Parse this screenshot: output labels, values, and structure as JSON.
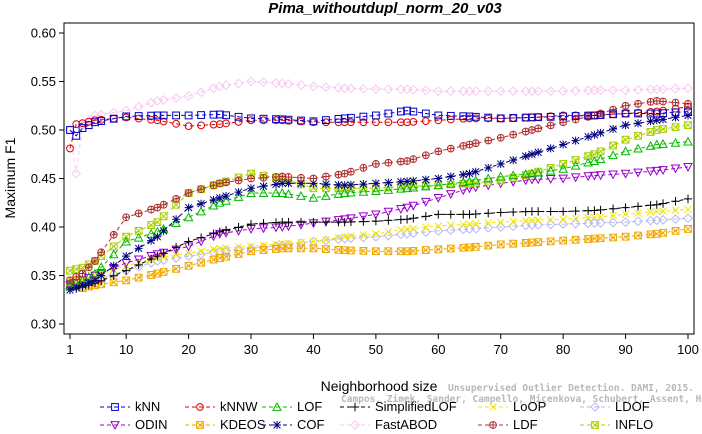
{
  "chart_data": {
    "type": "line",
    "title": "Pima_withoutdupl_norm_20_v03",
    "xlabel": "Neighborhood size",
    "ylabel": "Maximum F1",
    "xlim": [
      1,
      100
    ],
    "ylim": [
      0.3,
      0.6
    ],
    "xticks": [
      1,
      10,
      20,
      30,
      40,
      50,
      60,
      70,
      80,
      90,
      100
    ],
    "yticks": [
      0.3,
      0.35,
      0.4,
      0.45,
      0.5,
      0.55,
      0.6
    ],
    "grid": false,
    "legend_position": "bottom",
    "series": [
      {
        "name": "kNN",
        "color": "#0000cc",
        "marker": "square",
        "points": [
          [
            1,
            0.5
          ],
          [
            2,
            0.494
          ],
          [
            3,
            0.502
          ],
          [
            5,
            0.508
          ],
          [
            10,
            0.514
          ],
          [
            15,
            0.515
          ],
          [
            20,
            0.515
          ],
          [
            25,
            0.516
          ],
          [
            30,
            0.512
          ],
          [
            35,
            0.511
          ],
          [
            40,
            0.509
          ],
          [
            45,
            0.512
          ],
          [
            50,
            0.515
          ],
          [
            55,
            0.52
          ],
          [
            60,
            0.515
          ],
          [
            65,
            0.514
          ],
          [
            70,
            0.512
          ],
          [
            75,
            0.513
          ],
          [
            80,
            0.514
          ],
          [
            85,
            0.515
          ],
          [
            90,
            0.517
          ],
          [
            95,
            0.517
          ],
          [
            100,
            0.519
          ]
        ]
      },
      {
        "name": "kNNW",
        "color": "#dd0000",
        "marker": "circle",
        "points": [
          [
            1,
            0.481
          ],
          [
            2,
            0.506
          ],
          [
            3,
            0.507
          ],
          [
            5,
            0.51
          ],
          [
            10,
            0.513
          ],
          [
            15,
            0.51
          ],
          [
            20,
            0.504
          ],
          [
            25,
            0.506
          ],
          [
            30,
            0.51
          ],
          [
            35,
            0.51
          ],
          [
            40,
            0.508
          ],
          [
            45,
            0.508
          ],
          [
            50,
            0.508
          ],
          [
            55,
            0.508
          ],
          [
            60,
            0.51
          ],
          [
            65,
            0.512
          ],
          [
            70,
            0.512
          ],
          [
            75,
            0.513
          ],
          [
            80,
            0.515
          ],
          [
            85,
            0.515
          ],
          [
            90,
            0.517
          ],
          [
            95,
            0.519
          ],
          [
            100,
            0.524
          ]
        ]
      },
      {
        "name": "LOF",
        "color": "#00bb00",
        "marker": "triangle-up",
        "points": [
          [
            1,
            0.34
          ],
          [
            3,
            0.345
          ],
          [
            5,
            0.352
          ],
          [
            10,
            0.385
          ],
          [
            15,
            0.395
          ],
          [
            20,
            0.41
          ],
          [
            25,
            0.425
          ],
          [
            30,
            0.435
          ],
          [
            35,
            0.435
          ],
          [
            40,
            0.43
          ],
          [
            45,
            0.435
          ],
          [
            50,
            0.437
          ],
          [
            55,
            0.44
          ],
          [
            60,
            0.443
          ],
          [
            65,
            0.447
          ],
          [
            70,
            0.452
          ],
          [
            75,
            0.455
          ],
          [
            80,
            0.46
          ],
          [
            85,
            0.468
          ],
          [
            90,
            0.478
          ],
          [
            95,
            0.485
          ],
          [
            100,
            0.488
          ]
        ]
      },
      {
        "name": "SimplifiedLOF",
        "color": "#000000",
        "marker": "plus",
        "points": [
          [
            1,
            0.335
          ],
          [
            3,
            0.338
          ],
          [
            5,
            0.342
          ],
          [
            10,
            0.355
          ],
          [
            15,
            0.37
          ],
          [
            20,
            0.385
          ],
          [
            25,
            0.395
          ],
          [
            30,
            0.403
          ],
          [
            35,
            0.405
          ],
          [
            40,
            0.405
          ],
          [
            45,
            0.405
          ],
          [
            50,
            0.406
          ],
          [
            55,
            0.408
          ],
          [
            60,
            0.413
          ],
          [
            65,
            0.413
          ],
          [
            70,
            0.415
          ],
          [
            75,
            0.416
          ],
          [
            80,
            0.416
          ],
          [
            85,
            0.417
          ],
          [
            90,
            0.42
          ],
          [
            95,
            0.423
          ],
          [
            100,
            0.429
          ]
        ]
      },
      {
        "name": "LoOP",
        "color": "#f5e600",
        "marker": "x",
        "points": [
          [
            1,
            0.345
          ],
          [
            3,
            0.345
          ],
          [
            5,
            0.35
          ],
          [
            10,
            0.36
          ],
          [
            15,
            0.368
          ],
          [
            20,
            0.373
          ],
          [
            25,
            0.378
          ],
          [
            30,
            0.38
          ],
          [
            35,
            0.383
          ],
          [
            40,
            0.385
          ],
          [
            45,
            0.39
          ],
          [
            50,
            0.393
          ],
          [
            55,
            0.398
          ],
          [
            60,
            0.401
          ],
          [
            65,
            0.403
          ],
          [
            70,
            0.405
          ],
          [
            75,
            0.407
          ],
          [
            80,
            0.408
          ],
          [
            85,
            0.41
          ],
          [
            90,
            0.413
          ],
          [
            95,
            0.416
          ],
          [
            100,
            0.418
          ]
        ]
      },
      {
        "name": "LDOF",
        "color": "#b8b8f0",
        "marker": "diamond",
        "points": [
          [
            1,
            0.34
          ],
          [
            3,
            0.342
          ],
          [
            5,
            0.345
          ],
          [
            10,
            0.355
          ],
          [
            15,
            0.365
          ],
          [
            20,
            0.37
          ],
          [
            25,
            0.375
          ],
          [
            30,
            0.378
          ],
          [
            35,
            0.381
          ],
          [
            40,
            0.385
          ],
          [
            45,
            0.388
          ],
          [
            50,
            0.39
          ],
          [
            55,
            0.393
          ],
          [
            60,
            0.396
          ],
          [
            65,
            0.398
          ],
          [
            70,
            0.4
          ],
          [
            75,
            0.402
          ],
          [
            80,
            0.403
          ],
          [
            85,
            0.404
          ],
          [
            90,
            0.405
          ],
          [
            95,
            0.407
          ],
          [
            100,
            0.409
          ]
        ]
      },
      {
        "name": "ODIN",
        "color": "#9900cc",
        "marker": "triangle-down",
        "points": [
          [
            1,
            0.34
          ],
          [
            3,
            0.345
          ],
          [
            5,
            0.35
          ],
          [
            10,
            0.363
          ],
          [
            15,
            0.372
          ],
          [
            20,
            0.38
          ],
          [
            25,
            0.393
          ],
          [
            30,
            0.398
          ],
          [
            35,
            0.4
          ],
          [
            40,
            0.404
          ],
          [
            45,
            0.408
          ],
          [
            50,
            0.413
          ],
          [
            55,
            0.42
          ],
          [
            60,
            0.43
          ],
          [
            65,
            0.44
          ],
          [
            70,
            0.445
          ],
          [
            75,
            0.449
          ],
          [
            80,
            0.45
          ],
          [
            85,
            0.453
          ],
          [
            90,
            0.455
          ],
          [
            95,
            0.458
          ],
          [
            100,
            0.462
          ]
        ]
      },
      {
        "name": "KDEOS",
        "color": "#f0a800",
        "marker": "square-x",
        "points": [
          [
            1,
            0.34
          ],
          [
            3,
            0.337
          ],
          [
            5,
            0.34
          ],
          [
            10,
            0.345
          ],
          [
            15,
            0.352
          ],
          [
            20,
            0.36
          ],
          [
            25,
            0.368
          ],
          [
            30,
            0.375
          ],
          [
            35,
            0.378
          ],
          [
            40,
            0.378
          ],
          [
            45,
            0.376
          ],
          [
            50,
            0.375
          ],
          [
            55,
            0.375
          ],
          [
            60,
            0.377
          ],
          [
            65,
            0.379
          ],
          [
            70,
            0.382
          ],
          [
            75,
            0.384
          ],
          [
            80,
            0.386
          ],
          [
            85,
            0.388
          ],
          [
            90,
            0.39
          ],
          [
            95,
            0.393
          ],
          [
            100,
            0.398
          ]
        ]
      },
      {
        "name": "COF",
        "color": "#000080",
        "marker": "asterisk",
        "points": [
          [
            1,
            0.335
          ],
          [
            3,
            0.34
          ],
          [
            5,
            0.345
          ],
          [
            10,
            0.37
          ],
          [
            15,
            0.39
          ],
          [
            20,
            0.42
          ],
          [
            25,
            0.43
          ],
          [
            30,
            0.44
          ],
          [
            35,
            0.445
          ],
          [
            40,
            0.445
          ],
          [
            45,
            0.443
          ],
          [
            50,
            0.445
          ],
          [
            55,
            0.447
          ],
          [
            60,
            0.45
          ],
          [
            65,
            0.455
          ],
          [
            70,
            0.465
          ],
          [
            75,
            0.475
          ],
          [
            80,
            0.485
          ],
          [
            85,
            0.495
          ],
          [
            90,
            0.505
          ],
          [
            95,
            0.51
          ],
          [
            100,
            0.515
          ]
        ]
      },
      {
        "name": "FastABOD",
        "color": "#f8c8f0",
        "marker": "diamond",
        "points": [
          [
            1,
            0.5
          ],
          [
            2,
            0.455
          ],
          [
            3,
            0.505
          ],
          [
            5,
            0.515
          ],
          [
            10,
            0.52
          ],
          [
            15,
            0.53
          ],
          [
            20,
            0.535
          ],
          [
            25,
            0.545
          ],
          [
            30,
            0.55
          ],
          [
            35,
            0.548
          ],
          [
            40,
            0.545
          ],
          [
            45,
            0.543
          ],
          [
            50,
            0.542
          ],
          [
            55,
            0.542
          ],
          [
            60,
            0.54
          ],
          [
            65,
            0.54
          ],
          [
            70,
            0.54
          ],
          [
            75,
            0.54
          ],
          [
            80,
            0.54
          ],
          [
            85,
            0.541
          ],
          [
            90,
            0.541
          ],
          [
            95,
            0.542
          ],
          [
            100,
            0.543
          ]
        ]
      },
      {
        "name": "LDF",
        "color": "#b03030",
        "marker": "circle-plus",
        "points": [
          [
            1,
            0.345
          ],
          [
            3,
            0.352
          ],
          [
            5,
            0.365
          ],
          [
            10,
            0.41
          ],
          [
            15,
            0.42
          ],
          [
            20,
            0.435
          ],
          [
            25,
            0.445
          ],
          [
            30,
            0.45
          ],
          [
            35,
            0.452
          ],
          [
            40,
            0.45
          ],
          [
            45,
            0.455
          ],
          [
            50,
            0.465
          ],
          [
            55,
            0.468
          ],
          [
            60,
            0.478
          ],
          [
            65,
            0.485
          ],
          [
            70,
            0.492
          ],
          [
            75,
            0.5
          ],
          [
            80,
            0.508
          ],
          [
            85,
            0.515
          ],
          [
            90,
            0.525
          ],
          [
            95,
            0.53
          ],
          [
            100,
            0.527
          ]
        ]
      },
      {
        "name": "INFLO",
        "color": "#a8d000",
        "marker": "hourglass",
        "points": [
          [
            1,
            0.355
          ],
          [
            3,
            0.358
          ],
          [
            5,
            0.365
          ],
          [
            10,
            0.39
          ],
          [
            15,
            0.405
          ],
          [
            20,
            0.435
          ],
          [
            25,
            0.445
          ],
          [
            30,
            0.455
          ],
          [
            35,
            0.45
          ],
          [
            40,
            0.44
          ],
          [
            45,
            0.44
          ],
          [
            50,
            0.44
          ],
          [
            55,
            0.442
          ],
          [
            60,
            0.443
          ],
          [
            65,
            0.445
          ],
          [
            70,
            0.448
          ],
          [
            75,
            0.455
          ],
          [
            80,
            0.465
          ],
          [
            85,
            0.475
          ],
          [
            90,
            0.49
          ],
          [
            95,
            0.5
          ],
          [
            100,
            0.505
          ]
        ]
      }
    ]
  },
  "watermark": {
    "line1": "Unsupervised Outlier Detection. DAMI, 2015.",
    "line2": "Campos, Zimek, Sander, Campello, Micenkova, Schubert, Assent, Houle"
  }
}
